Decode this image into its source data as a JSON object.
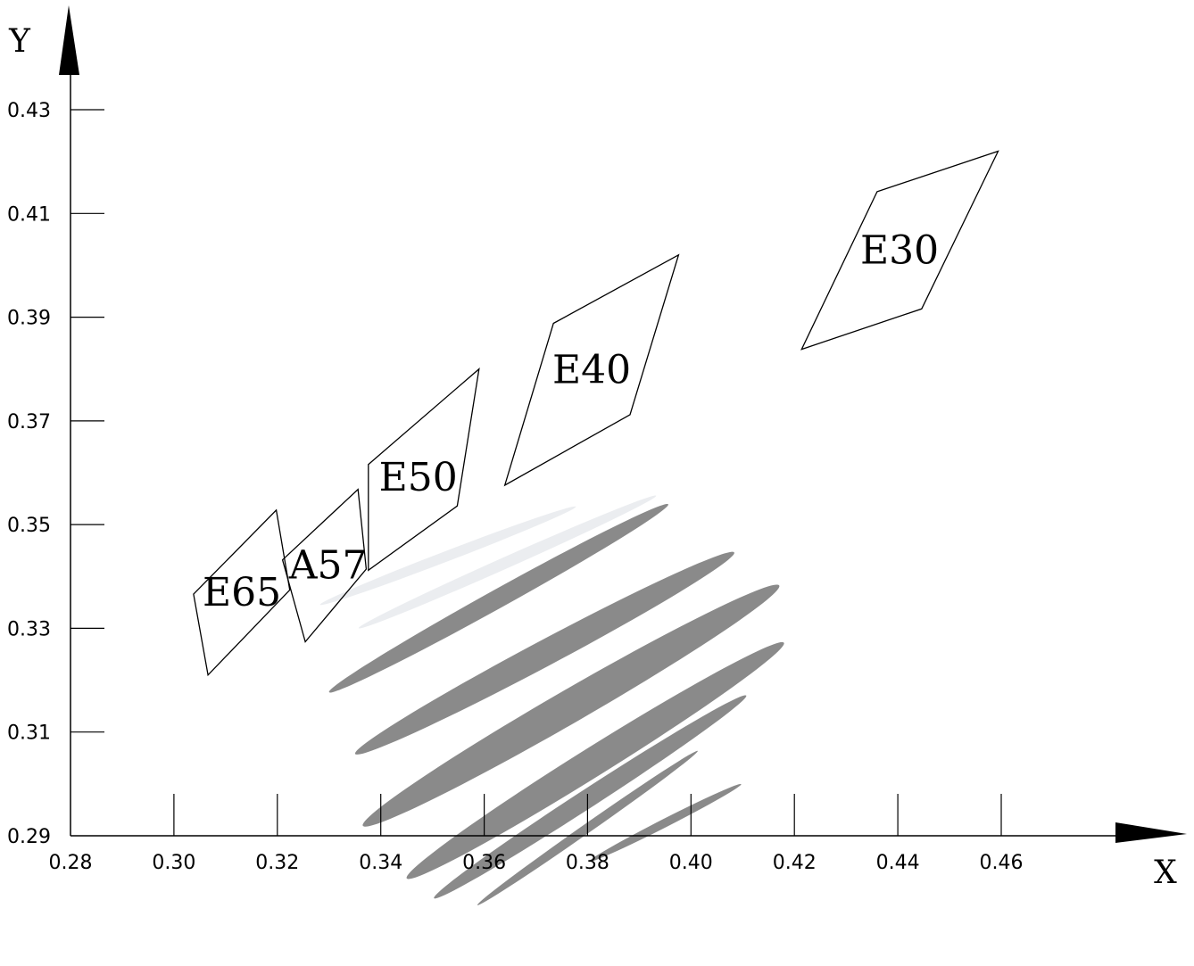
{
  "chart_data": {
    "type": "scatter",
    "xlabel": "X",
    "ylabel": "Y",
    "xlim": [
      0.28,
      0.48
    ],
    "ylim": [
      0.29,
      0.43
    ],
    "x_ticks": [
      "0.28",
      "0.30",
      "0.32",
      "0.34",
      "0.36",
      "0.38",
      "0.40",
      "0.42",
      "0.44",
      "0.46"
    ],
    "y_ticks": [
      "0.29",
      "0.31",
      "0.33",
      "0.35",
      "0.37",
      "0.39",
      "0.41",
      "0.43"
    ],
    "grid": false,
    "regions": [
      {
        "label": "E65",
        "corners": [
          [
            0.3038,
            0.3366
          ],
          [
            0.3198,
            0.3528
          ],
          [
            0.3224,
            0.3374
          ],
          [
            0.3066,
            0.321
          ]
        ]
      },
      {
        "label": "A57",
        "corners": [
          [
            0.321,
            0.3432
          ],
          [
            0.3356,
            0.3568
          ],
          [
            0.3372,
            0.3414
          ],
          [
            0.3254,
            0.3274
          ]
        ]
      },
      {
        "label": "E50",
        "corners": [
          [
            0.3376,
            0.3616
          ],
          [
            0.359,
            0.38
          ],
          [
            0.3548,
            0.3536
          ],
          [
            0.3376,
            0.3412
          ]
        ]
      },
      {
        "label": "E40",
        "corners": [
          [
            0.3734,
            0.3888
          ],
          [
            0.3976,
            0.402
          ],
          [
            0.3882,
            0.3712
          ],
          [
            0.364,
            0.3576
          ]
        ]
      },
      {
        "label": "E30",
        "corners": [
          [
            0.436,
            0.4142
          ],
          [
            0.4594,
            0.422
          ],
          [
            0.4446,
            0.3916
          ],
          [
            0.4214,
            0.3838
          ]
        ]
      }
    ],
    "ellipses": [
      {
        "cx": 0.353,
        "cy": 0.344,
        "rx": 0.0265,
        "ry": 0.001,
        "angle_deg": -21,
        "color": "#ebedf0"
      },
      {
        "cx": 0.3645,
        "cy": 0.3428,
        "rx": 0.0315,
        "ry": 0.0011,
        "angle_deg": -24,
        "color": "#ebedf0"
      },
      {
        "cx": 0.3628,
        "cy": 0.3358,
        "rx": 0.0375,
        "ry": 0.0018,
        "angle_deg": -29,
        "color": "#8a8a8a"
      },
      {
        "cx": 0.3717,
        "cy": 0.3252,
        "rx": 0.0415,
        "ry": 0.0025,
        "angle_deg": -28,
        "color": "#8a8a8a"
      },
      {
        "cx": 0.3768,
        "cy": 0.3151,
        "rx": 0.0465,
        "ry": 0.0032,
        "angle_deg": -30,
        "color": "#8a8a8a"
      },
      {
        "cx": 0.3815,
        "cy": 0.3045,
        "rx": 0.043,
        "ry": 0.0028,
        "angle_deg": -32,
        "color": "#8a8a8a"
      },
      {
        "cx": 0.3805,
        "cy": 0.2975,
        "rx": 0.036,
        "ry": 0.0018,
        "angle_deg": -33,
        "color": "#8a8a8a"
      },
      {
        "cx": 0.38,
        "cy": 0.2915,
        "rx": 0.026,
        "ry": 0.0009,
        "angle_deg": -35,
        "color": "#8a8a8a"
      },
      {
        "cx": 0.395,
        "cy": 0.2925,
        "rx": 0.0165,
        "ry": 0.0008,
        "angle_deg": -27,
        "color": "#8a8a8a"
      }
    ]
  }
}
